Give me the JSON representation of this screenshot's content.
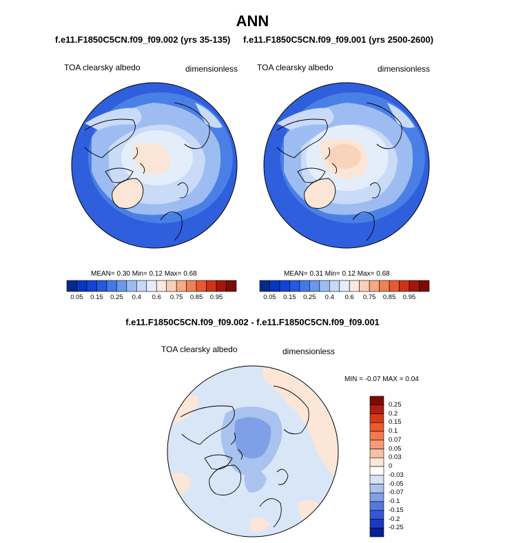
{
  "page_title": "ANN",
  "panels": [
    {
      "case_title": "f.e11.F1850C5CN.f09_f09.002 (yrs 35-135)",
      "variable": "TOA clearsky albedo",
      "units": "dimensionless",
      "stats_text": "MEAN=   0.30  Min=   0.12  Max=   0.68"
    },
    {
      "case_title": "f.e11.F1850C5CN.f09_f09.001 (yrs 2500-2600)",
      "variable": "TOA clearsky albedo",
      "units": "dimensionless",
      "stats_text": "MEAN=   0.31  Min=   0.12  Max=   0.68"
    }
  ],
  "diff_panel": {
    "title": "f.e11.F1850C5CN.f09_f09.002 - f.e11.F1850C5CN.f09_f09.001",
    "variable": "TOA clearsky albedo",
    "units": "dimensionless",
    "minmax_text": "MIN =  -0.07 MAX =   0.04"
  },
  "colorbar_abs": {
    "colors": [
      "#03298f",
      "#0636c2",
      "#1043d8",
      "#2759e0",
      "#4378e6",
      "#6a98ec",
      "#9bbcf1",
      "#c7d9f6",
      "#e3edfb",
      "#fbe8de",
      "#f9cfb7",
      "#f5a984",
      "#ef8057",
      "#e75a30",
      "#cf3417",
      "#a5160a",
      "#7e0a04"
    ],
    "labels": [
      "0.05",
      "0.15",
      "0.25",
      "0.4",
      "0.6",
      "0.75",
      "0.85",
      "0.95"
    ]
  },
  "colorbar_diff": {
    "colors": [
      "#7e0a04",
      "#b21d0d",
      "#d63a1a",
      "#ec5a2d",
      "#f27a4f",
      "#f49d78",
      "#f6c1a4",
      "#fbe6d8",
      "#ffffff",
      "#d6e3f6",
      "#aac3ee",
      "#7f9fe6",
      "#5578de",
      "#3556d4",
      "#1d39c2",
      "#091f9a"
    ],
    "labels": [
      "0.25",
      "0.2",
      "0.15",
      "0.1",
      "0.07",
      "0.05",
      "0.03",
      "0",
      "-0.03",
      "-0.05",
      "-0.07",
      "-0.1",
      "-0.15",
      "-0.2",
      "-0.25"
    ]
  }
}
